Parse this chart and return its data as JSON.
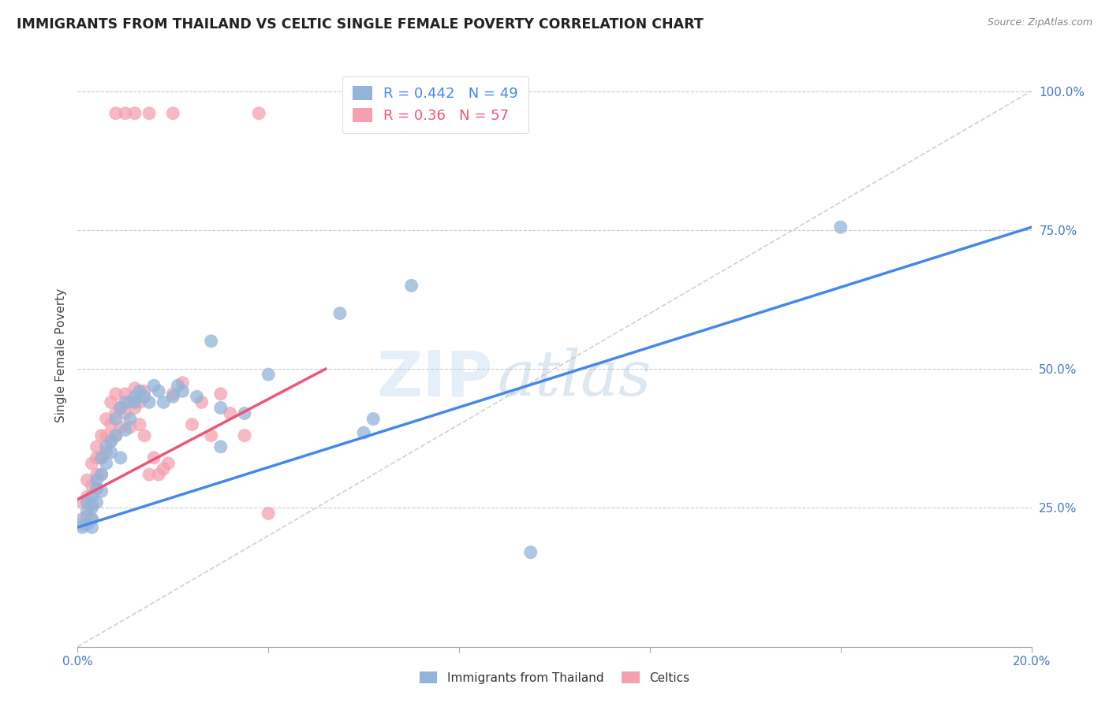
{
  "title": "IMMIGRANTS FROM THAILAND VS CELTIC SINGLE FEMALE POVERTY CORRELATION CHART",
  "source": "Source: ZipAtlas.com",
  "ylabel": "Single Female Poverty",
  "legend1_label": "Immigrants from Thailand",
  "legend2_label": "Celtics",
  "R1": 0.442,
  "N1": 49,
  "R2": 0.36,
  "N2": 57,
  "blue_color": "#92B4D8",
  "pink_color": "#F4A0B0",
  "blue_line_color": "#4488EE",
  "pink_line_color": "#EE5577",
  "diagonal_color": "#CCCCCC",
  "watermark_zip": "ZIP",
  "watermark_atlas": "atlas",
  "blue_scatter_x": [
    0.001,
    0.001,
    0.002,
    0.002,
    0.002,
    0.003,
    0.003,
    0.003,
    0.003,
    0.004,
    0.004,
    0.004,
    0.005,
    0.005,
    0.005,
    0.006,
    0.006,
    0.007,
    0.007,
    0.008,
    0.008,
    0.009,
    0.009,
    0.01,
    0.01,
    0.011,
    0.012,
    0.012,
    0.013,
    0.014,
    0.015,
    0.016,
    0.017,
    0.018,
    0.02,
    0.021,
    0.022,
    0.025,
    0.028,
    0.03,
    0.035,
    0.04,
    0.055,
    0.062,
    0.07,
    0.095,
    0.16,
    0.06,
    0.03
  ],
  "blue_scatter_y": [
    0.215,
    0.23,
    0.22,
    0.245,
    0.26,
    0.215,
    0.23,
    0.25,
    0.27,
    0.26,
    0.285,
    0.3,
    0.28,
    0.31,
    0.34,
    0.33,
    0.36,
    0.35,
    0.37,
    0.38,
    0.41,
    0.34,
    0.43,
    0.39,
    0.44,
    0.41,
    0.45,
    0.44,
    0.46,
    0.45,
    0.44,
    0.47,
    0.46,
    0.44,
    0.45,
    0.47,
    0.46,
    0.45,
    0.55,
    0.43,
    0.42,
    0.49,
    0.6,
    0.41,
    0.65,
    0.17,
    0.755,
    0.385,
    0.36
  ],
  "pink_scatter_x": [
    0.001,
    0.001,
    0.002,
    0.002,
    0.002,
    0.003,
    0.003,
    0.003,
    0.003,
    0.004,
    0.004,
    0.004,
    0.004,
    0.005,
    0.005,
    0.005,
    0.006,
    0.006,
    0.006,
    0.007,
    0.007,
    0.007,
    0.008,
    0.008,
    0.008,
    0.009,
    0.009,
    0.01,
    0.01,
    0.011,
    0.011,
    0.012,
    0.012,
    0.013,
    0.013,
    0.014,
    0.014,
    0.015,
    0.016,
    0.017,
    0.018,
    0.019,
    0.02,
    0.022,
    0.024,
    0.026,
    0.028,
    0.03,
    0.032,
    0.035,
    0.038,
    0.04,
    0.01,
    0.008,
    0.015,
    0.012,
    0.02
  ],
  "pink_scatter_y": [
    0.22,
    0.26,
    0.235,
    0.3,
    0.27,
    0.23,
    0.255,
    0.29,
    0.33,
    0.285,
    0.31,
    0.34,
    0.36,
    0.31,
    0.34,
    0.38,
    0.35,
    0.38,
    0.41,
    0.37,
    0.4,
    0.44,
    0.38,
    0.42,
    0.455,
    0.395,
    0.43,
    0.42,
    0.455,
    0.395,
    0.44,
    0.43,
    0.465,
    0.4,
    0.44,
    0.38,
    0.46,
    0.31,
    0.34,
    0.31,
    0.32,
    0.33,
    0.455,
    0.475,
    0.4,
    0.44,
    0.38,
    0.455,
    0.42,
    0.38,
    0.96,
    0.24,
    0.96,
    0.96,
    0.96,
    0.96,
    0.96
  ],
  "xlim": [
    0.0,
    0.2
  ],
  "ylim": [
    0.0,
    1.05
  ],
  "x_ticks": [
    0.0,
    0.04,
    0.08,
    0.12,
    0.16,
    0.2
  ],
  "y_ticks": [
    0.25,
    0.5,
    0.75,
    1.0
  ],
  "blue_line_x": [
    0.0,
    0.2
  ],
  "blue_line_y": [
    0.215,
    0.755
  ],
  "pink_line_x": [
    0.0,
    0.052
  ],
  "pink_line_y": [
    0.265,
    0.5
  ]
}
